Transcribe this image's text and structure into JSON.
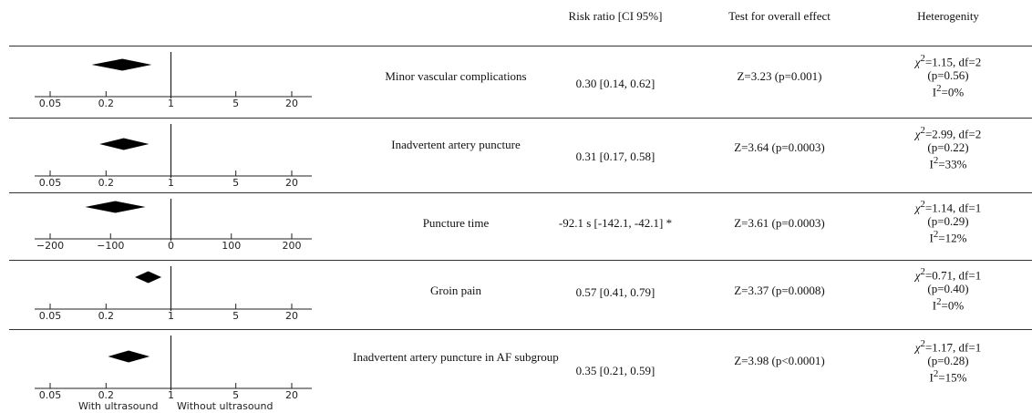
{
  "header": {
    "ratio": "Risk ratio [CI 95%]",
    "test": "Test for overall effect",
    "het": "Heterogenity"
  },
  "footer": {
    "left": "With ultrasound",
    "right": "Without ultrasound"
  },
  "chart_data": [
    {
      "type": "scatter",
      "scale": "log",
      "label": "Minor vascular complications",
      "estimate": 0.3,
      "ci": [
        0.14,
        0.62
      ],
      "reference": 1,
      "ticks": [
        0.05,
        0.2,
        1,
        5,
        20
      ],
      "tick_labels": [
        "0.05",
        "0.2",
        "1",
        "5",
        "20"
      ],
      "ratio_text": "0.30 [0.14, 0.62]",
      "test_text": "Z=3.23 (p=0.001)",
      "het": {
        "chi": "=1.15, df=2",
        "p": "(p=0.56)",
        "i2": "=0%"
      }
    },
    {
      "type": "scatter",
      "scale": "log",
      "label": "Inadvertent artery puncture",
      "estimate": 0.31,
      "ci": [
        0.17,
        0.58
      ],
      "reference": 1,
      "ticks": [
        0.05,
        0.2,
        1,
        5,
        20
      ],
      "tick_labels": [
        "0.05",
        "0.2",
        "1",
        "5",
        "20"
      ],
      "ratio_text": "0.31 [0.17, 0.58]",
      "test_text": "Z=3.64 (p=0.0003)",
      "het": {
        "chi": "=2.99, df=2",
        "p": "(p=0.22)",
        "i2": "=33%"
      }
    },
    {
      "type": "scatter",
      "scale": "linear",
      "label": "Puncture time",
      "estimate": -92.1,
      "ci": [
        -142.1,
        -42.1
      ],
      "reference": 0,
      "ticks": [
        -200,
        -100,
        0,
        100,
        200
      ],
      "tick_labels": [
        "−200",
        "−100",
        "0",
        "100",
        "200"
      ],
      "ratio_text": "-92.1 s [-142.1, -42.1] *",
      "test_text": "Z=3.61 (p=0.0003)",
      "het": {
        "chi": "=1.14, df=1",
        "p": "(p=0.29)",
        "i2": "=12%"
      }
    },
    {
      "type": "scatter",
      "scale": "log",
      "label": "Groin pain",
      "estimate": 0.57,
      "ci": [
        0.41,
        0.79
      ],
      "reference": 1,
      "ticks": [
        0.05,
        0.2,
        1,
        5,
        20
      ],
      "tick_labels": [
        "0.05",
        "0.2",
        "1",
        "5",
        "20"
      ],
      "ratio_text": "0.57 [0.41, 0.79]",
      "test_text": "Z=3.37 (p=0.0008)",
      "het": {
        "chi": "=0.71, df=1",
        "p": "(p=0.40)",
        "i2": "=0%"
      }
    },
    {
      "type": "scatter",
      "scale": "log",
      "label": "Inadvertent artery puncture in AF subgroup",
      "estimate": 0.35,
      "ci": [
        0.21,
        0.59
      ],
      "reference": 1,
      "ticks": [
        0.05,
        0.2,
        1,
        5,
        20
      ],
      "tick_labels": [
        "0.05",
        "0.2",
        "1",
        "5",
        "20"
      ],
      "ratio_text": "0.35 [0.21, 0.59]",
      "test_text": "Z=3.98 (p<0.0001)",
      "het": {
        "chi": "=1.17, df=1",
        "p": "(p=0.28)",
        "i2": "=15%"
      }
    }
  ]
}
